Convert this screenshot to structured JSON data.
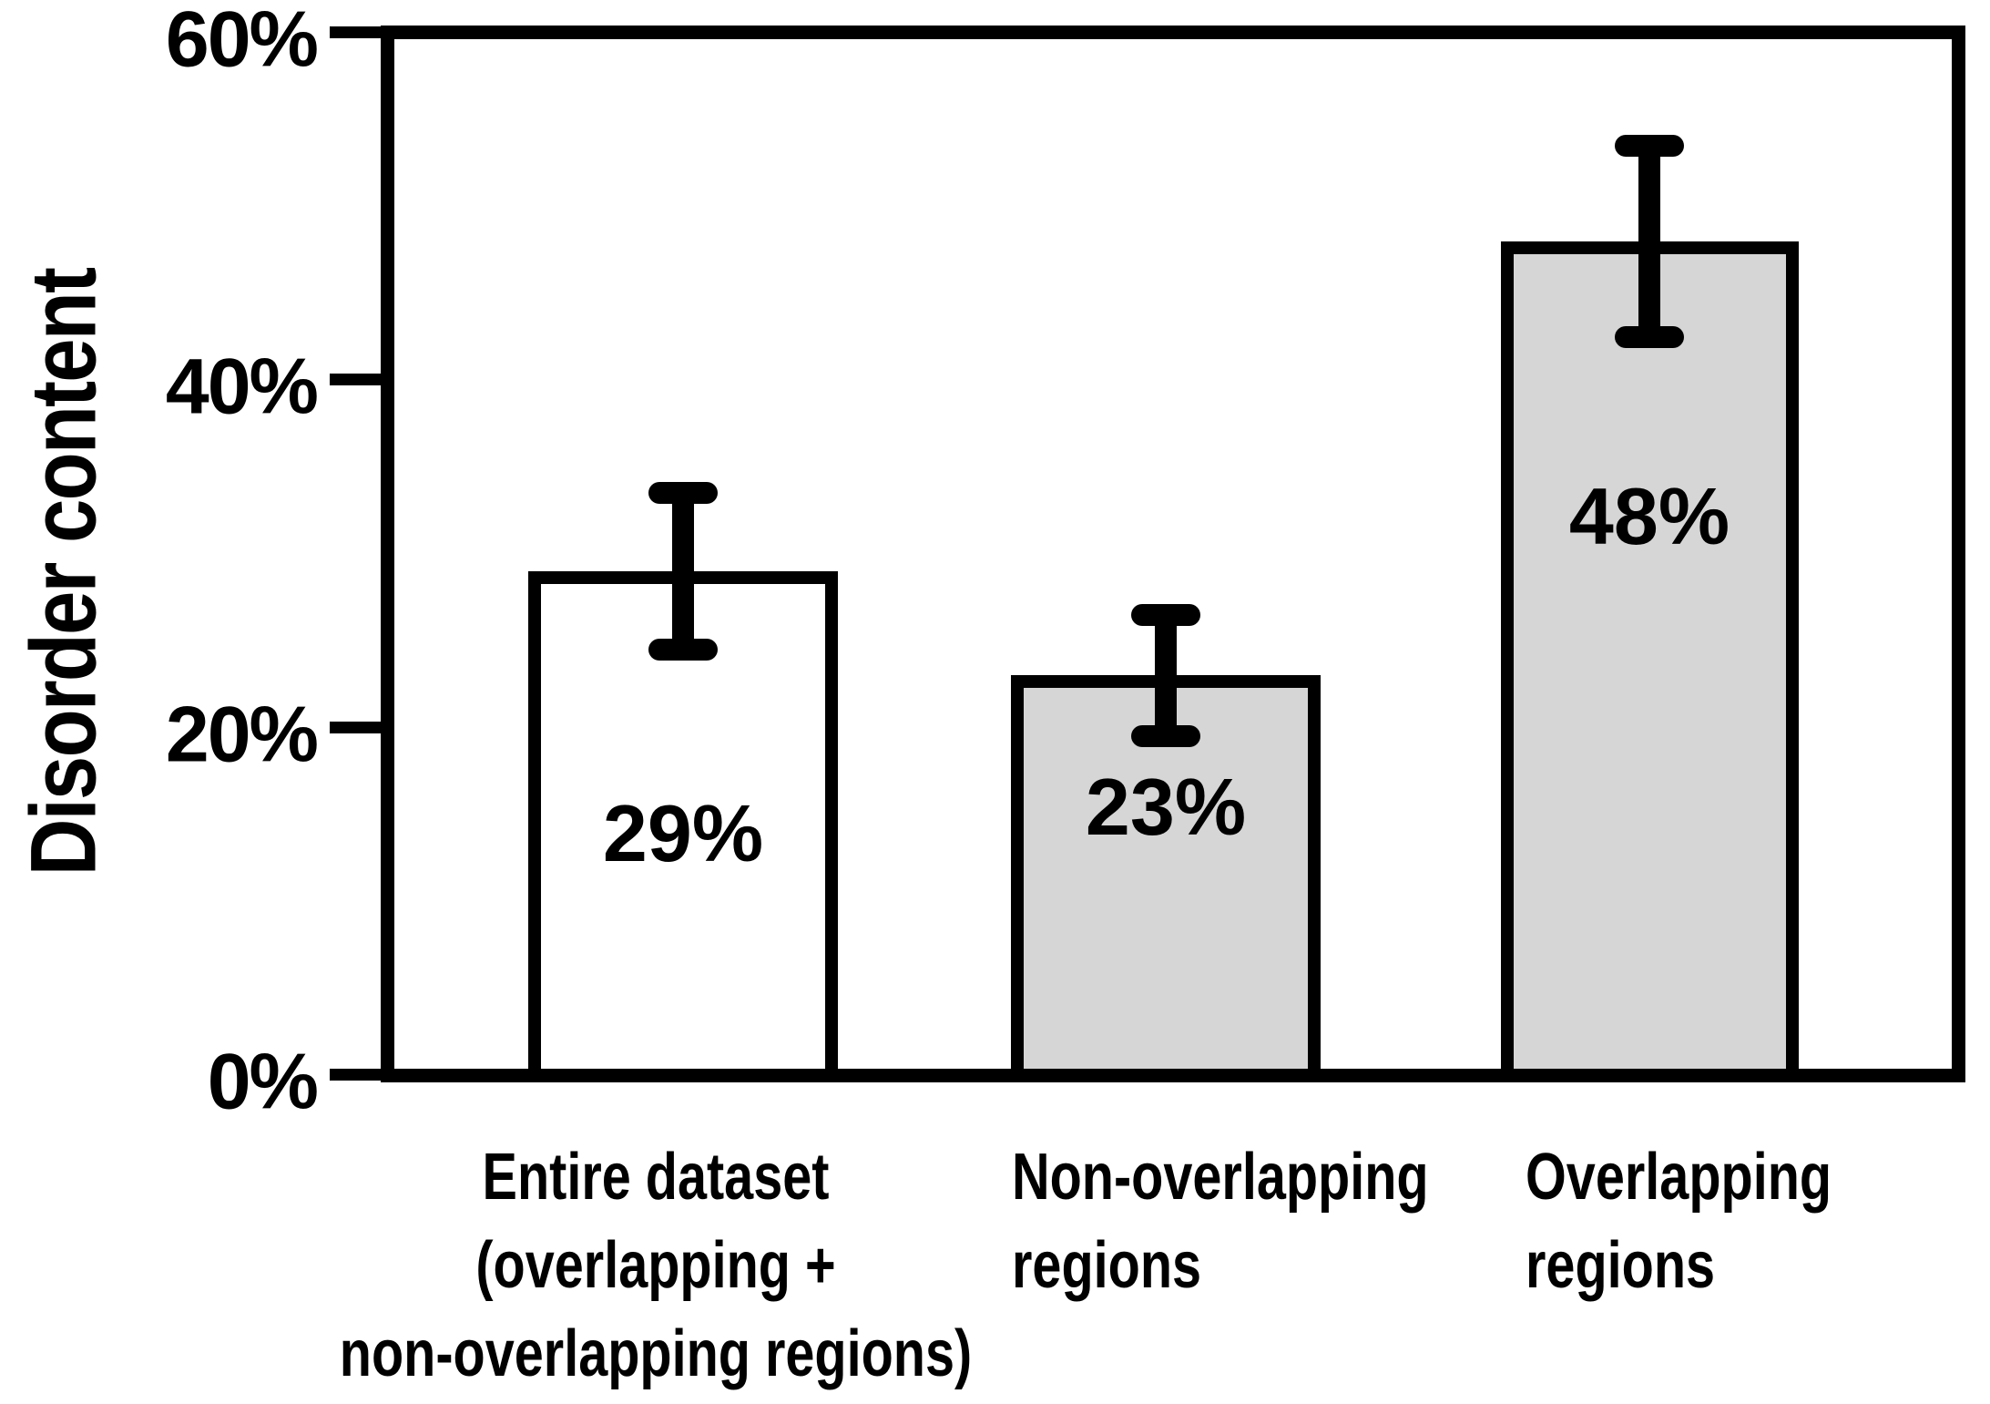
{
  "figure": {
    "background": "#ffffff",
    "ink_color": "#000000"
  },
  "chart_data": {
    "type": "bar",
    "title": "",
    "xlabel": "",
    "ylabel": "Disorder content",
    "ylim": [
      0,
      60
    ],
    "grid": false,
    "legend": false,
    "yticks": [
      {
        "value": 60,
        "label": "60%"
      },
      {
        "value": 40,
        "label": "40%"
      },
      {
        "value": 20,
        "label": "20%"
      },
      {
        "value": 0,
        "label": "0%"
      }
    ],
    "bars": [
      {
        "category": "Entire dataset\n(overlapping +\nnon-overlapping regions)",
        "value": 29,
        "error": 4.5,
        "label": "29%",
        "fill": "#ffffff",
        "label_pos_frac": 0.52,
        "category_align": "center"
      },
      {
        "category": "Non-overlapping\nregions",
        "value": 23,
        "error": 3.5,
        "label": "23%",
        "fill": "#d6d6d6",
        "label_pos_frac": 0.33,
        "category_align": "left"
      },
      {
        "category": "Overlapping\nregions",
        "value": 48,
        "error": 5.5,
        "label": "48%",
        "fill": "#d6d6d6",
        "label_pos_frac": 0.33,
        "category_align": "left"
      }
    ]
  }
}
